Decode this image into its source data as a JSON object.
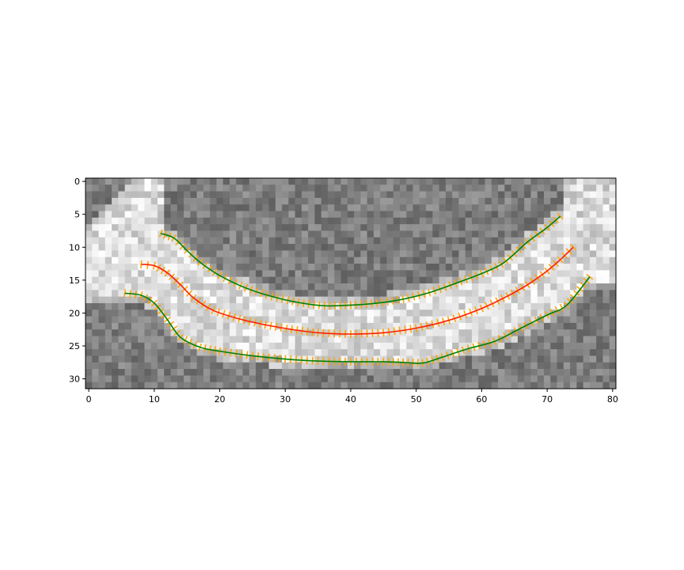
{
  "chart_data": {
    "type": "heatmap",
    "title": "",
    "xlabel": "",
    "ylabel": "",
    "colormap": "gray",
    "xlim": [
      -0.5,
      80.5
    ],
    "ylim": [
      31.5,
      -0.5
    ],
    "x_ticks": [
      0,
      10,
      20,
      30,
      40,
      50,
      60,
      70,
      80
    ],
    "y_ticks": [
      0,
      5,
      10,
      15,
      20,
      25,
      30
    ],
    "grid": false,
    "image_size": [
      81,
      32
    ],
    "series": [
      {
        "color": "#008000",
        "style": "line",
        "x": [
          11,
          13,
          15,
          17,
          20,
          24,
          28,
          32,
          36,
          40,
          44,
          48,
          52,
          56,
          60,
          63,
          65,
          67,
          70,
          72
        ],
        "y": [
          7.9,
          8.6,
          10.5,
          12.3,
          14.3,
          16.2,
          17.5,
          18.4,
          18.9,
          18.8,
          18.5,
          17.9,
          16.9,
          15.5,
          14.0,
          12.6,
          11.0,
          9.2,
          7.0,
          5.3
        ]
      },
      {
        "color": "#ff2000",
        "style": "line",
        "x": [
          8,
          10,
          12,
          14,
          16,
          19,
          23,
          27,
          31,
          35,
          40,
          45,
          50,
          55,
          60,
          64,
          67,
          70,
          72,
          74
        ],
        "y": [
          12.6,
          12.8,
          13.9,
          15.7,
          17.7,
          19.6,
          20.9,
          21.8,
          22.5,
          23.0,
          23.2,
          23.0,
          22.3,
          21.1,
          19.3,
          17.4,
          15.7,
          13.6,
          11.9,
          10.0
        ]
      },
      {
        "color": "#008000",
        "style": "line",
        "x": [
          5.5,
          8,
          10,
          12,
          14,
          17,
          20,
          25,
          30,
          35,
          40,
          45,
          48,
          51,
          54,
          58,
          62,
          66,
          70,
          73,
          76.5
        ],
        "y": [
          17.0,
          17.3,
          18.5,
          21.0,
          23.7,
          25.2,
          25.8,
          26.5,
          27.0,
          27.3,
          27.4,
          27.4,
          27.5,
          27.6,
          26.7,
          25.4,
          24.3,
          22.3,
          20.3,
          18.8,
          14.5
        ]
      }
    ],
    "normal_ticks": [
      {
        "series": 0,
        "color": "#ffa500"
      },
      {
        "series": 1,
        "color": "#ffa500"
      },
      {
        "series": 2,
        "color": "#ffa500"
      }
    ]
  }
}
